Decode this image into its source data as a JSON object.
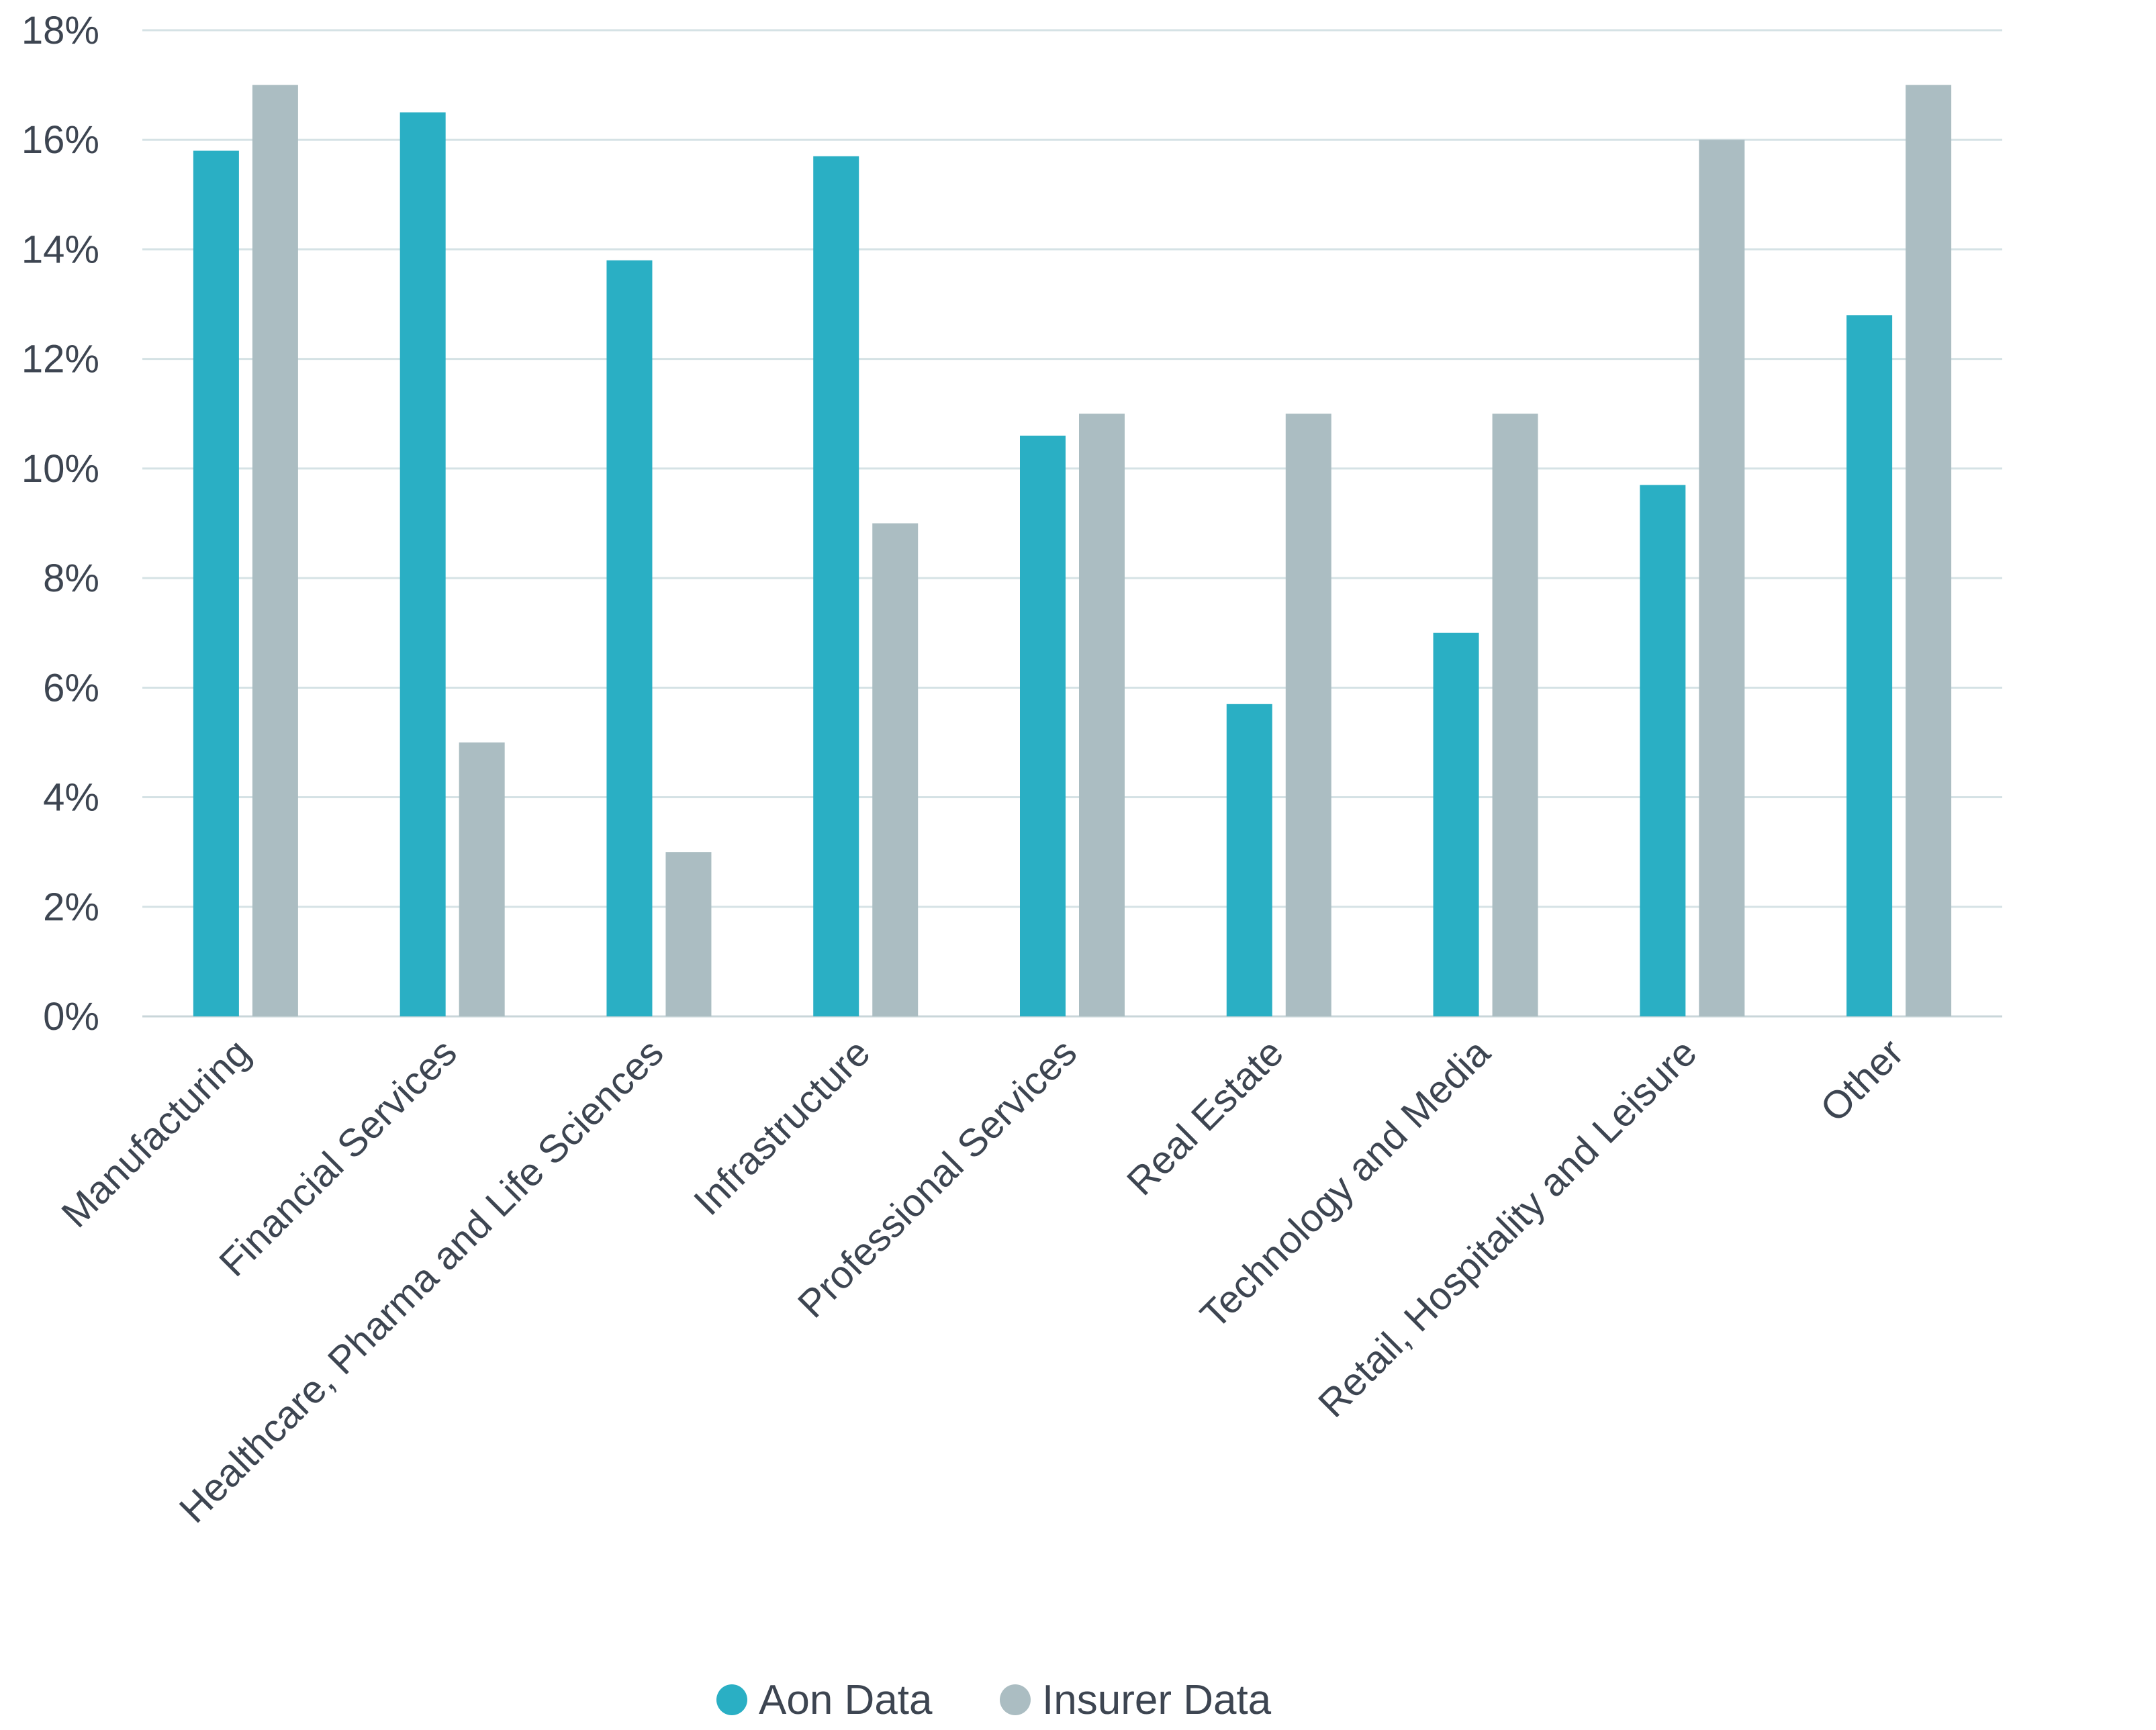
{
  "chart_data": {
    "type": "bar",
    "title": "",
    "xlabel": "",
    "ylabel": "",
    "ylim": [
      0,
      18
    ],
    "y_ticks": [
      0,
      2,
      4,
      6,
      8,
      10,
      12,
      14,
      16,
      18
    ],
    "y_tick_labels": [
      "0%",
      "2%",
      "4%",
      "6%",
      "8%",
      "10%",
      "12%",
      "14%",
      "16%",
      "18%"
    ],
    "grid": true,
    "legend_position": "bottom-center",
    "categories": [
      "Manufacturing",
      "Financial Services",
      "Healthcare, Pharma and Life Sciences",
      "Infrastructure",
      "Professional Services",
      "Real Estate",
      "Technology and Media",
      "Retail, Hospitality and Leisure",
      "Other"
    ],
    "series": [
      {
        "name": "Aon Data",
        "color": "#2AAFC4",
        "values": [
          15.8,
          16.5,
          13.8,
          15.7,
          10.6,
          5.7,
          7.0,
          9.7,
          12.8
        ]
      },
      {
        "name": "Insurer Data",
        "color": "#ABBDC2",
        "values": [
          17.0,
          5.0,
          3.0,
          9.0,
          11.0,
          11.0,
          11.0,
          16.0,
          17.0
        ]
      }
    ]
  },
  "colors": {
    "text": "#3D4551",
    "grid": "#D5E2E5",
    "axis": "#C9D6D9"
  }
}
